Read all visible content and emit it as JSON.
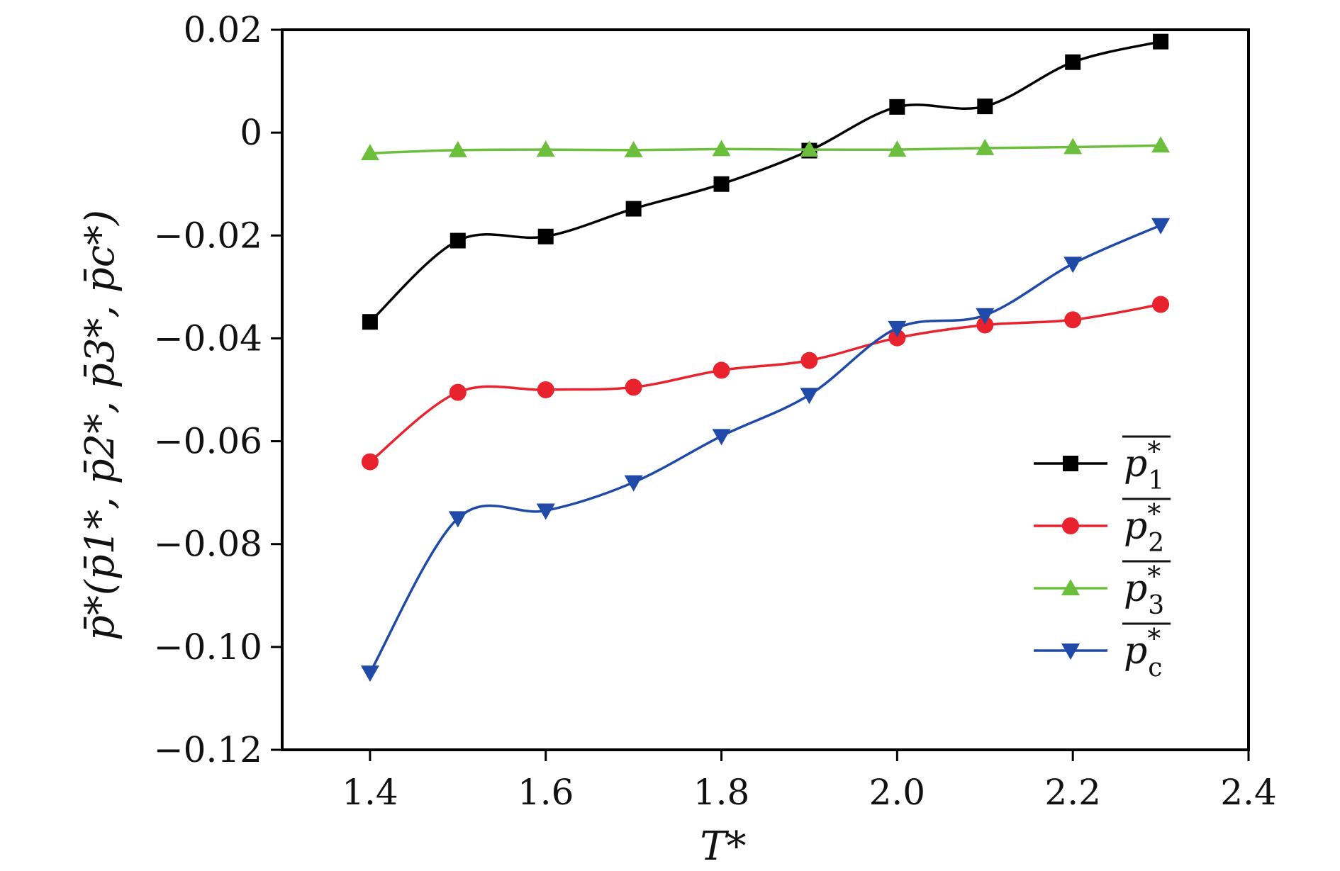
{
  "chart_data": {
    "type": "line",
    "title": "",
    "xlabel": "T*",
    "ylabel": "p̄*(p̄1*, p̄2*, p̄3*, p̄c*)",
    "x": [
      1.4,
      1.5,
      1.6,
      1.7,
      1.8,
      1.9,
      2.0,
      2.1,
      2.2,
      2.3
    ],
    "xlim": [
      1.3,
      2.4
    ],
    "ylim": [
      -0.12,
      0.02
    ],
    "xticks": [
      1.4,
      1.6,
      1.8,
      2.0,
      2.2,
      2.4
    ],
    "xtick_labels": [
      "1.4",
      "1.6",
      "1.8",
      "2.0",
      "2.2",
      "2.4"
    ],
    "yticks": [
      0.02,
      0,
      -0.02,
      -0.04,
      -0.06,
      -0.08,
      -0.1,
      -0.12
    ],
    "ytick_labels": [
      "0.02",
      "0",
      "−0.02",
      "−0.04",
      "−0.06",
      "−0.08",
      "−0.10",
      "−0.12"
    ],
    "legend_position": "right",
    "series": [
      {
        "name": "p1*",
        "base": "p",
        "sub": "1",
        "sup": "*",
        "color": "#000000",
        "marker": "square",
        "values": [
          -0.0368,
          -0.021,
          -0.0202,
          -0.0148,
          -0.01,
          -0.0035,
          0.005,
          0.0051,
          0.0137,
          0.0177
        ]
      },
      {
        "name": "p2*",
        "base": "p",
        "sub": "2",
        "sup": "*",
        "color": "#e8232e",
        "marker": "circle",
        "values": [
          -0.064,
          -0.0505,
          -0.05,
          -0.0495,
          -0.0462,
          -0.0443,
          -0.0399,
          -0.0374,
          -0.0364,
          -0.0334
        ]
      },
      {
        "name": "p3*",
        "base": "p",
        "sub": "3",
        "sup": "*",
        "color": "#6cbf3c",
        "marker": "triangle-up",
        "values": [
          -0.004,
          -0.0034,
          -0.0033,
          -0.0034,
          -0.0032,
          -0.0033,
          -0.0033,
          -0.003,
          -0.0028,
          -0.0025
        ]
      },
      {
        "name": "pc*",
        "base": "p",
        "sub": "c",
        "sup": "*",
        "color": "#1f4aa8",
        "marker": "triangle-down",
        "values": [
          -0.105,
          -0.075,
          -0.0735,
          -0.068,
          -0.059,
          -0.051,
          -0.038,
          -0.0355,
          -0.0255,
          -0.018
        ]
      }
    ]
  }
}
